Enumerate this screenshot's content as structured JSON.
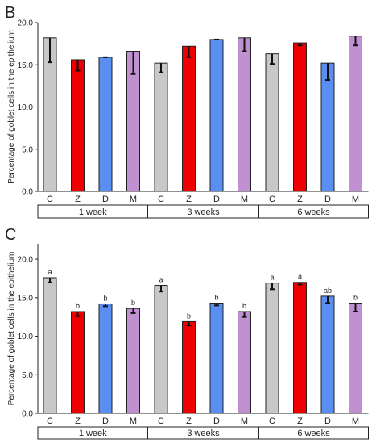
{
  "chart_data": [
    {
      "panel": "B",
      "type": "bar",
      "ylabel": "Percentage of goblet cells in the epithelium",
      "ylim": [
        0,
        20
      ],
      "yticks": [
        "0.0",
        "5.0",
        "10.0",
        "15.0",
        "20.0"
      ],
      "groups": [
        {
          "label": "1 week",
          "categories": [
            "C",
            "Z",
            "D",
            "M"
          ]
        },
        {
          "label": "3 weeks",
          "categories": [
            "C",
            "Z",
            "D",
            "M"
          ]
        },
        {
          "label": "6 weeks",
          "categories": [
            "C",
            "Z",
            "D",
            "M"
          ]
        }
      ],
      "bars": [
        {
          "group": "1 week",
          "category": "C",
          "value": 18.2,
          "error_low": 15.3,
          "error_high": 18.2,
          "color": "#c8c8c8"
        },
        {
          "group": "1 week",
          "category": "Z",
          "value": 15.6,
          "error_low": 14.3,
          "error_high": 15.6,
          "color": "#ee0000"
        },
        {
          "group": "1 week",
          "category": "D",
          "value": 15.9,
          "error_low": 15.9,
          "error_high": 15.9,
          "color": "#5a8ef0"
        },
        {
          "group": "1 week",
          "category": "M",
          "value": 16.6,
          "error_low": 13.9,
          "error_high": 16.6,
          "color": "#c090d0"
        },
        {
          "group": "3 weeks",
          "category": "C",
          "value": 15.2,
          "error_low": 14.1,
          "error_high": 15.2,
          "color": "#c8c8c8"
        },
        {
          "group": "3 weeks",
          "category": "Z",
          "value": 17.2,
          "error_low": 15.9,
          "error_high": 17.2,
          "color": "#ee0000"
        },
        {
          "group": "3 weeks",
          "category": "D",
          "value": 18.0,
          "error_low": 18.0,
          "error_high": 18.0,
          "color": "#5a8ef0"
        },
        {
          "group": "3 weeks",
          "category": "M",
          "value": 18.2,
          "error_low": 16.6,
          "error_high": 18.2,
          "color": "#c090d0"
        },
        {
          "group": "6 weeks",
          "category": "C",
          "value": 16.3,
          "error_low": 15.1,
          "error_high": 16.3,
          "color": "#c8c8c8"
        },
        {
          "group": "6 weeks",
          "category": "Z",
          "value": 17.6,
          "error_low": 17.3,
          "error_high": 17.6,
          "color": "#ee0000"
        },
        {
          "group": "6 weeks",
          "category": "D",
          "value": 15.2,
          "error_low": 13.2,
          "error_high": 15.2,
          "color": "#5a8ef0"
        },
        {
          "group": "6 weeks",
          "category": "M",
          "value": 18.4,
          "error_low": 17.3,
          "error_high": 18.4,
          "color": "#c090d0"
        }
      ]
    },
    {
      "panel": "C",
      "type": "bar",
      "ylabel": "Percentage of goblet cells in the epithelium",
      "ylim": [
        0,
        22
      ],
      "yticks": [
        "0.0",
        "5.0",
        "10.0",
        "15.0",
        "20.0"
      ],
      "groups": [
        {
          "label": "1 week",
          "categories": [
            "C",
            "Z",
            "D",
            "M"
          ]
        },
        {
          "label": "3 weeks",
          "categories": [
            "C",
            "Z",
            "D",
            "M"
          ]
        },
        {
          "label": "6 weeks",
          "categories": [
            "C",
            "Z",
            "D",
            "M"
          ]
        }
      ],
      "bars": [
        {
          "group": "1 week",
          "category": "C",
          "value": 17.6,
          "error_low": 17.0,
          "error_high": 17.6,
          "letter": "a",
          "color": "#c8c8c8"
        },
        {
          "group": "1 week",
          "category": "Z",
          "value": 13.2,
          "error_low": 12.6,
          "error_high": 13.2,
          "letter": "b",
          "color": "#ee0000"
        },
        {
          "group": "1 week",
          "category": "D",
          "value": 14.2,
          "error_low": 13.9,
          "error_high": 14.2,
          "letter": "b",
          "color": "#5a8ef0"
        },
        {
          "group": "1 week",
          "category": "M",
          "value": 13.6,
          "error_low": 13.0,
          "error_high": 13.6,
          "letter": "b",
          "color": "#c090d0"
        },
        {
          "group": "3 weeks",
          "category": "C",
          "value": 16.6,
          "error_low": 15.8,
          "error_high": 16.6,
          "letter": "a",
          "color": "#c8c8c8"
        },
        {
          "group": "3 weeks",
          "category": "Z",
          "value": 11.9,
          "error_low": 11.4,
          "error_high": 11.9,
          "letter": "b",
          "color": "#ee0000"
        },
        {
          "group": "3 weeks",
          "category": "D",
          "value": 14.3,
          "error_low": 14.0,
          "error_high": 14.3,
          "letter": "b",
          "color": "#5a8ef0"
        },
        {
          "group": "3 weeks",
          "category": "M",
          "value": 13.2,
          "error_low": 12.5,
          "error_high": 13.2,
          "letter": "b",
          "color": "#c090d0"
        },
        {
          "group": "6 weeks",
          "category": "C",
          "value": 16.9,
          "error_low": 16.1,
          "error_high": 16.9,
          "letter": "a",
          "color": "#c8c8c8"
        },
        {
          "group": "6 weeks",
          "category": "Z",
          "value": 17.0,
          "error_low": 16.7,
          "error_high": 17.0,
          "letter": "a",
          "color": "#ee0000"
        },
        {
          "group": "6 weeks",
          "category": "D",
          "value": 15.2,
          "error_low": 14.3,
          "error_high": 15.2,
          "letter": "ab",
          "color": "#5a8ef0"
        },
        {
          "group": "6 weeks",
          "category": "M",
          "value": 14.3,
          "error_low": 13.2,
          "error_high": 14.3,
          "letter": "b",
          "color": "#c090d0"
        }
      ]
    }
  ]
}
